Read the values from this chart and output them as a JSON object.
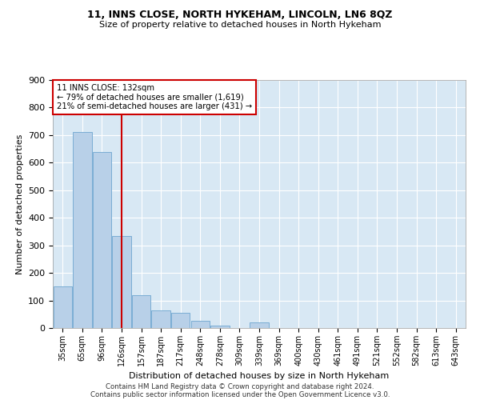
{
  "title1": "11, INNS CLOSE, NORTH HYKEHAM, LINCOLN, LN6 8QZ",
  "title2": "Size of property relative to detached houses in North Hykeham",
  "xlabel": "Distribution of detached houses by size in North Hykeham",
  "ylabel": "Number of detached properties",
  "footer1": "Contains HM Land Registry data © Crown copyright and database right 2024.",
  "footer2": "Contains public sector information licensed under the Open Government Licence v3.0.",
  "annotation_line1": "11 INNS CLOSE: 132sqm",
  "annotation_line2": "← 79% of detached houses are smaller (1,619)",
  "annotation_line3": "21% of semi-detached houses are larger (431) →",
  "bar_color": "#b8d0e8",
  "bar_edge_color": "#7aadd4",
  "vline_color": "#cc0000",
  "bg_color": "#d8e8f4",
  "categories": [
    "35sqm",
    "65sqm",
    "96sqm",
    "126sqm",
    "157sqm",
    "187sqm",
    "217sqm",
    "248sqm",
    "278sqm",
    "309sqm",
    "339sqm",
    "369sqm",
    "400sqm",
    "430sqm",
    "461sqm",
    "491sqm",
    "521sqm",
    "552sqm",
    "582sqm",
    "613sqm",
    "643sqm"
  ],
  "values": [
    150,
    710,
    640,
    335,
    120,
    65,
    55,
    25,
    10,
    0,
    20,
    0,
    0,
    0,
    0,
    0,
    0,
    0,
    0,
    0,
    0
  ],
  "vline_x": 3.0,
  "ylim": [
    0,
    900
  ],
  "yticks": [
    0,
    100,
    200,
    300,
    400,
    500,
    600,
    700,
    800,
    900
  ]
}
